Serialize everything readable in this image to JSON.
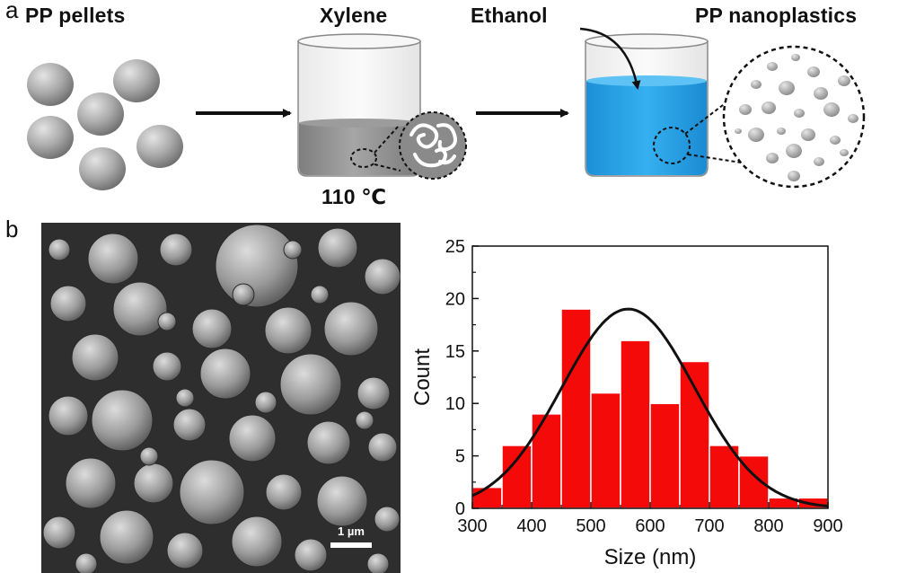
{
  "panel_a": {
    "letter": "a",
    "labels": {
      "pellets": "PP pellets",
      "xylene": "Xylene",
      "ethanol": "Ethanol",
      "nanoplastics": "PP nanoplastics",
      "temperature": "110 ℃"
    }
  },
  "panel_b": {
    "letter": "b",
    "sem": {
      "scale_bar": "1 µm"
    }
  },
  "colors": {
    "bar_fill": "#f50a0a",
    "fit_line": "#111111",
    "ethanol_blue": "#29a3e8",
    "pellet_gray": "#a9a9a9"
  },
  "chart_data": {
    "type": "bar",
    "xlabel": "Size (nm)",
    "ylabel": "Count",
    "xlim": [
      300,
      900
    ],
    "ylim": [
      0,
      25
    ],
    "x_ticks": [
      "300",
      "400",
      "500",
      "600",
      "700",
      "800",
      "900"
    ],
    "y_ticks": [
      "0",
      "5",
      "10",
      "15",
      "20",
      "25"
    ],
    "bin_width": 50,
    "bin_starts": [
      300,
      350,
      400,
      450,
      500,
      550,
      600,
      650,
      700,
      750,
      800,
      850
    ],
    "values": [
      2,
      6,
      9,
      19,
      11,
      16,
      10,
      14,
      6,
      5,
      1,
      1
    ],
    "fit_curve": {
      "type": "gaussian",
      "peak_x": 563,
      "peak_y": 19,
      "sigma": 112
    },
    "grid": false
  }
}
